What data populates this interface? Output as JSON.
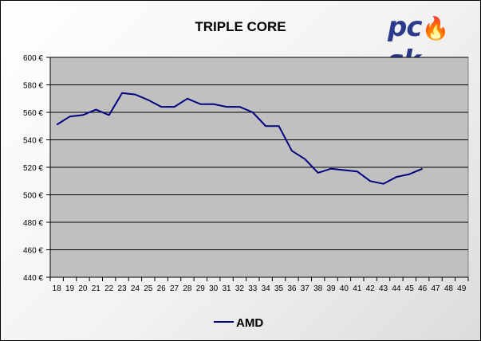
{
  "logo": {
    "text_pre": "pc",
    "text_post": "sk",
    "flame_icon": "flame-icon"
  },
  "chart_data": {
    "type": "line",
    "title": "TRIPLE CORE",
    "xlabel": "",
    "ylabel": "",
    "x": [
      18,
      19,
      20,
      21,
      22,
      23,
      24,
      25,
      26,
      27,
      28,
      29,
      30,
      31,
      32,
      33,
      34,
      35,
      36,
      37,
      38,
      39,
      40,
      41,
      42,
      43,
      44,
      45,
      46,
      47,
      48,
      49
    ],
    "x_ticks": [
      "18",
      "19",
      "20",
      "21",
      "22",
      "23",
      "24",
      "25",
      "26",
      "27",
      "28",
      "29",
      "30",
      "31",
      "32",
      "33",
      "34",
      "35",
      "36",
      "37",
      "38",
      "39",
      "40",
      "41",
      "42",
      "43",
      "44",
      "45",
      "46",
      "47",
      "48",
      "49"
    ],
    "y_ticks": [
      "440 €",
      "460 €",
      "480 €",
      "500 €",
      "520 €",
      "540 €",
      "560 €",
      "580 €",
      "600 €"
    ],
    "ylim": [
      440,
      600
    ],
    "grid": "horizontal",
    "legend_position": "bottom",
    "series": [
      {
        "name": "AMD",
        "color": "#000080",
        "values": [
          551,
          557,
          558,
          562,
          558,
          574,
          573,
          569,
          564,
          564,
          570,
          566,
          566,
          564,
          564,
          560,
          550,
          550,
          532,
          526,
          516,
          519,
          518,
          517,
          510,
          508,
          513,
          515,
          519,
          null,
          null,
          null
        ]
      }
    ],
    "plot_background": "#c0c0c0",
    "gridline_color": "#000000"
  }
}
